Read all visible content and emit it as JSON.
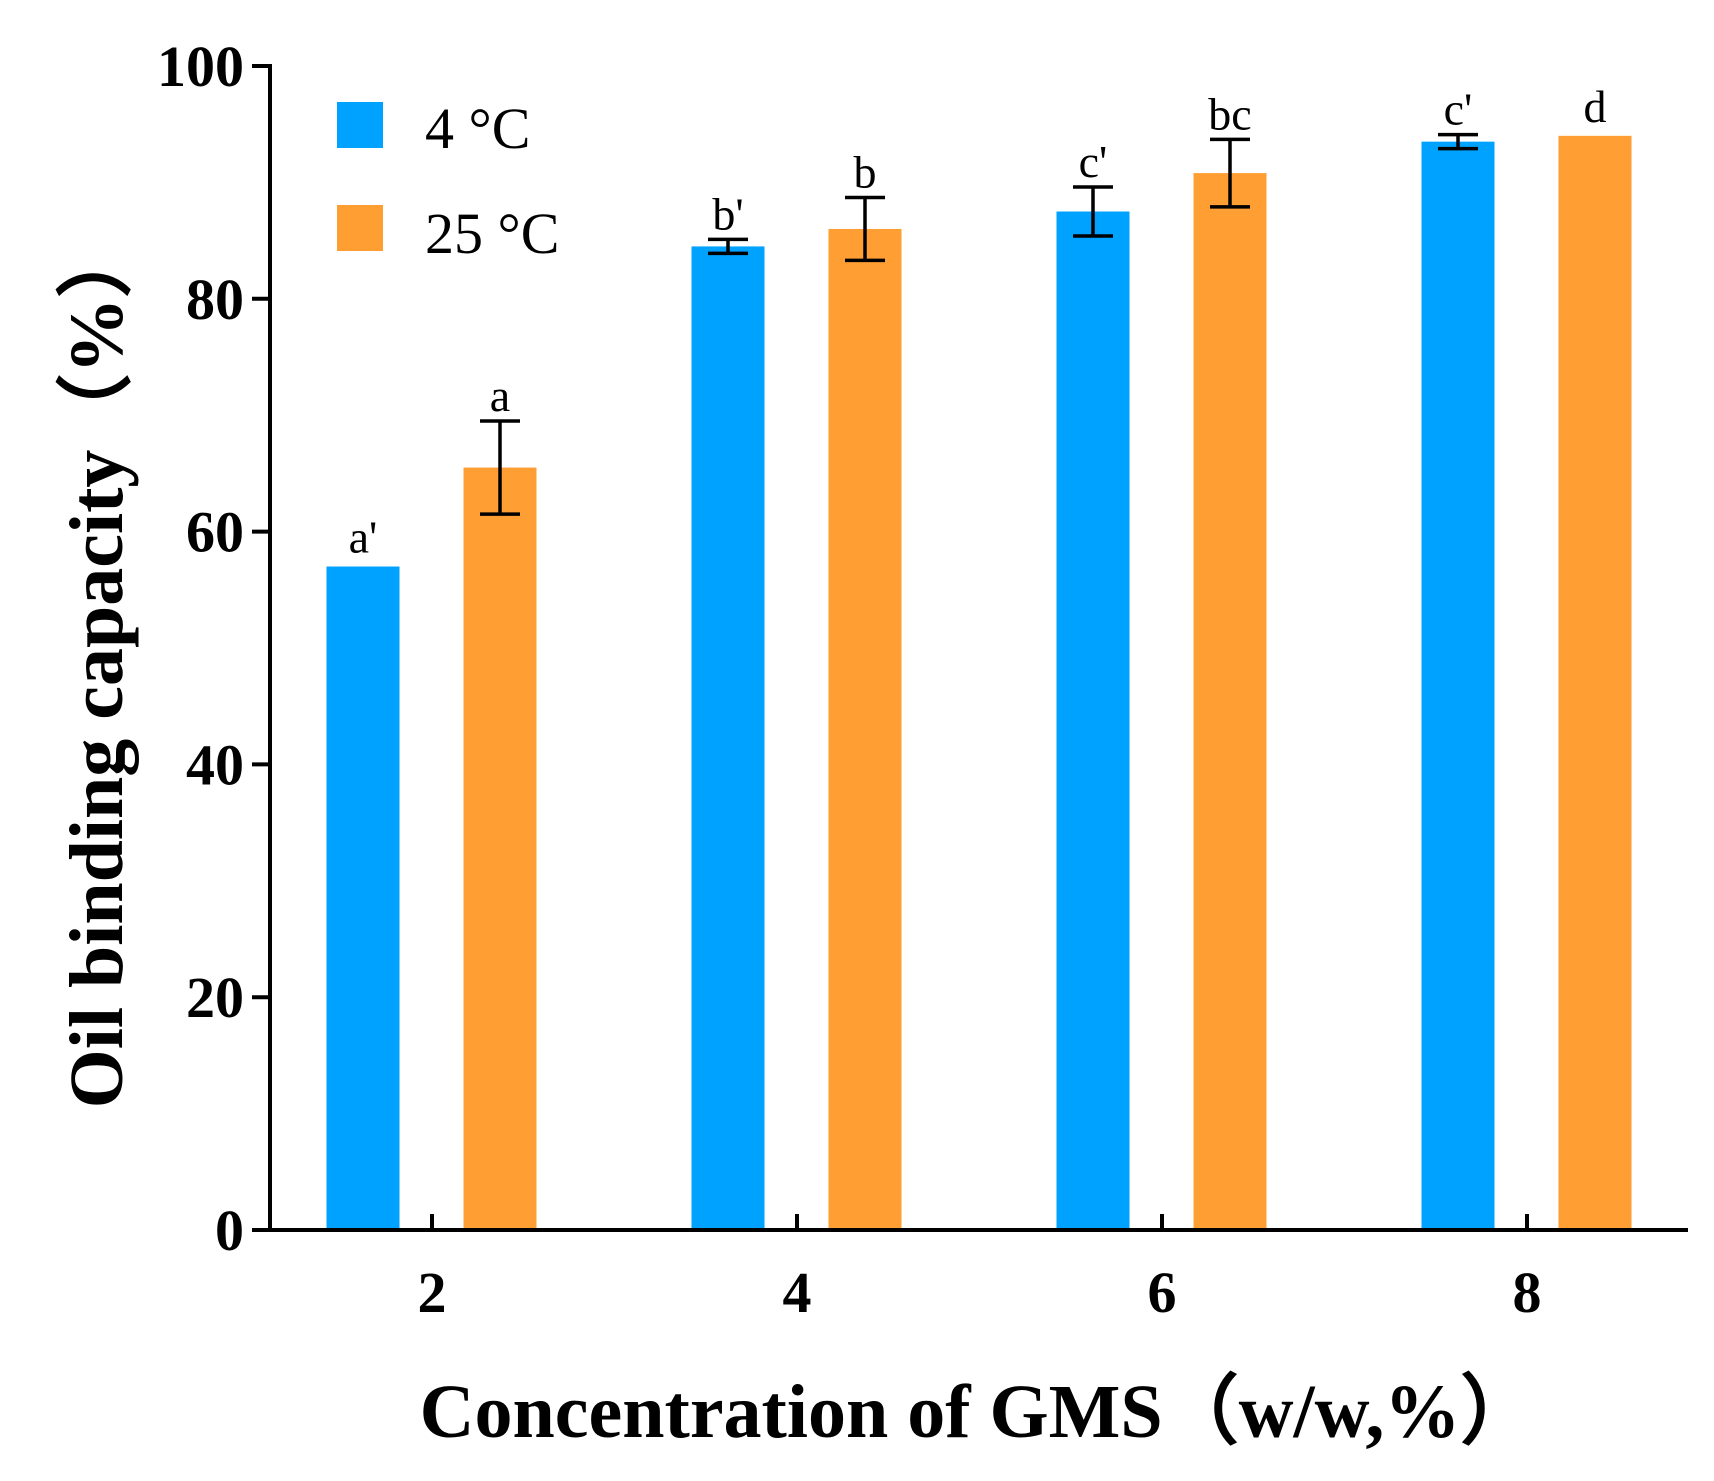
{
  "chart_data": {
    "type": "bar",
    "title": "",
    "xlabel": "Concentration of GMS（w/w,%）",
    "ylabel": "Oil binding capacity（%）",
    "ylim": [
      0,
      100
    ],
    "yticks": [
      0,
      20,
      40,
      60,
      80,
      100
    ],
    "categories": [
      "2",
      "4",
      "6",
      "8"
    ],
    "legend_position": "top-left",
    "series": [
      {
        "name": "4 °C",
        "color": "#00a2ff",
        "values": [
          57.0,
          84.5,
          87.5,
          93.5
        ],
        "errors": [
          0,
          0.6,
          2.1,
          0.6
        ],
        "labels": [
          "a'",
          "b'",
          "c'",
          "c'"
        ]
      },
      {
        "name": "25 °C",
        "color": "#ff9f33",
        "values": [
          65.5,
          86.0,
          90.8,
          94.0
        ],
        "errors": [
          4.0,
          2.7,
          2.9,
          0
        ],
        "labels": [
          "a",
          "b",
          "bc",
          "d"
        ]
      }
    ]
  }
}
